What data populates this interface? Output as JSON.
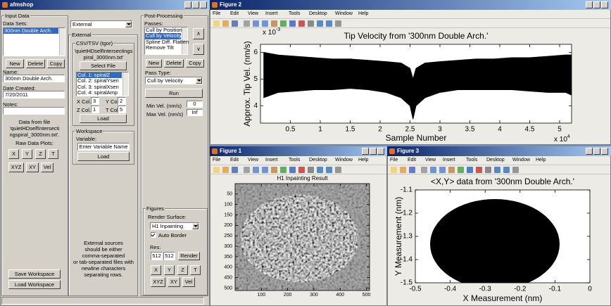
{
  "main_window": {
    "title": "afmshop",
    "input_data": {
      "title": "Input Data",
      "data_sets_label": "Data Sets:",
      "data_sets": [
        "300nm Double Arch."
      ],
      "buttons": [
        "New",
        "Delete",
        "Copy"
      ],
      "name_label": "Name:",
      "name": "300nm Double Arch.",
      "date_label": "Date Created:",
      "date": "7/20/2011",
      "notes_label": "Notes:",
      "info": [
        "Data from file",
        "'quietHDselfIntersecti",
        "ngspiral_3000nm.txt'."
      ],
      "raw_plots_label": "Raw Data Plots:",
      "plot_buttons": [
        "X",
        "Y",
        "Z",
        "T",
        "XYZ",
        "XY",
        "Vel"
      ],
      "save": "Save Workspace",
      "load": "Load Workspace"
    },
    "source": {
      "selected": "External",
      "external_title": "External",
      "csv_title": "CSV/TSV (tgor)",
      "file": [
        "'quietHDselfIntersectings",
        "piral_3000nm.txt'"
      ],
      "select_file": "Select File",
      "columns": [
        "Col. 1: spiralZ",
        "Col. 2: spiralYsen",
        "Col. 3: spiralXsen",
        "Col. 4: spiralAmp"
      ],
      "x_col_label": "X Col.",
      "x_col": 3,
      "y_col_label": "Y Col.",
      "y_col": 2,
      "z_col_label": "Z Col.",
      "z_col": 1,
      "t_col_label": "T Col.",
      "t_col": 5,
      "load": "Load",
      "workspace_title": "Workspace",
      "variable_label": "Variable:",
      "variable_placeholder": "Enter Variable Name",
      "workspace_load": "Load",
      "note": [
        "External sources",
        "should be either",
        "comma-separated",
        "or tab-separated files with",
        "newline characters",
        "separating rows."
      ]
    },
    "post": {
      "title": "Post-Processing",
      "passes_label": "Passes:",
      "passes": [
        "Cull by Position",
        "Cull by Velocity",
        "Spline Diff. Flatten",
        "Remove Tilt"
      ],
      "up": "∧",
      "down": "∨",
      "buttons": [
        "New",
        "Delete",
        "Copy"
      ],
      "pass_type_label": "Pass Type:",
      "pass_type": "Cull by Velocity",
      "run": "Run",
      "min_label": "Min Vel. (nm/s)",
      "min": 0,
      "max_label": "Max Vel. (nm/s)",
      "max": "Inf",
      "figures_title": "Figures",
      "render_label": "Render Surface:",
      "render_surface": "H1 Inpainting",
      "auto_border": "Auto Border",
      "res_label": "Res:",
      "res": [
        512,
        512
      ],
      "render": "Render",
      "plot_buttons": [
        "X",
        "Y",
        "Z",
        "T",
        "XYZ",
        "XY",
        "Vel"
      ]
    }
  },
  "figures": [
    {
      "title": "Figure 2",
      "menu": [
        "File",
        "Edit",
        "View",
        "Insert",
        "Tools",
        "Desktop",
        "Window",
        "Help"
      ],
      "chart": {
        "type": "area",
        "title": "Tip Velocity from '300nm Double Arch.'",
        "x_label": "Sample Number",
        "y_label": "Approx. Tip Vel. (nm/s)",
        "x_multiplier": {
          "base": "x 10",
          "exponent": "4"
        },
        "y_multiplier": {
          "base": "x 10",
          "exponent": "-3"
        },
        "x": [
          0.05,
          0.3,
          0.6,
          0.9,
          1.2,
          1.5,
          1.8,
          2.1,
          2.35,
          2.5,
          2.55,
          2.6,
          2.75,
          3.0,
          3.3,
          3.6,
          3.9,
          4.2,
          4.5,
          4.8,
          5.1,
          5.2
        ],
        "upper": [
          6.0,
          5.9,
          5.85,
          5.8,
          5.75,
          5.75,
          5.7,
          5.65,
          5.6,
          5.4,
          5.0,
          5.4,
          5.6,
          5.65,
          5.7,
          5.75,
          5.75,
          5.8,
          5.8,
          5.85,
          5.9,
          5.9
        ],
        "lower": [
          4.3,
          4.5,
          4.55,
          4.6,
          4.6,
          4.65,
          4.6,
          4.5,
          4.3,
          4.0,
          3.5,
          4.0,
          4.3,
          4.5,
          4.6,
          4.6,
          4.6,
          4.6,
          4.55,
          4.5,
          4.5,
          4.4
        ],
        "color": "#000000",
        "xlim": [
          0,
          5.2
        ],
        "xticks": [
          0.5,
          1,
          1.5,
          2,
          2.5,
          3,
          3.5,
          4,
          4.5,
          5
        ],
        "ylim": [
          3.35,
          6.3
        ],
        "yticks": [
          4,
          5,
          6
        ]
      }
    },
    {
      "title": "Figure 1",
      "menu": [
        "File",
        "Edit",
        "View",
        "Insert",
        "Tools",
        "Desktop",
        "Window",
        "Help"
      ],
      "chart": {
        "type": "image",
        "title": "H1 Inpainting Result",
        "xlim": [
          0,
          512
        ],
        "xticks": [
          100,
          200,
          300,
          400,
          500
        ],
        "ylim": [
          512,
          0
        ],
        "yticks": [
          50,
          100,
          150,
          200,
          250,
          300,
          350,
          400,
          450,
          500
        ]
      }
    },
    {
      "title": "Figure 3",
      "menu": [
        "File",
        "Edit",
        "View",
        "Insert",
        "Tools",
        "Desktop",
        "Window",
        "Help"
      ],
      "chart": {
        "type": "scatter",
        "title": "<X,Y> data from '300nm Double Arch.'",
        "x_label": "X Measurement (nm)",
        "y_label": "Y Measurement (nm)",
        "color": "#000000",
        "xlim": [
          -0.5,
          0
        ],
        "xticks": [
          -0.5,
          -0.4,
          -0.3,
          -0.2,
          -0.1,
          0
        ],
        "ylim": [
          -1.5,
          -1.1
        ],
        "yticks": [
          -1.5,
          -1.4,
          -1.3,
          -1.2,
          -1.1
        ]
      }
    }
  ]
}
